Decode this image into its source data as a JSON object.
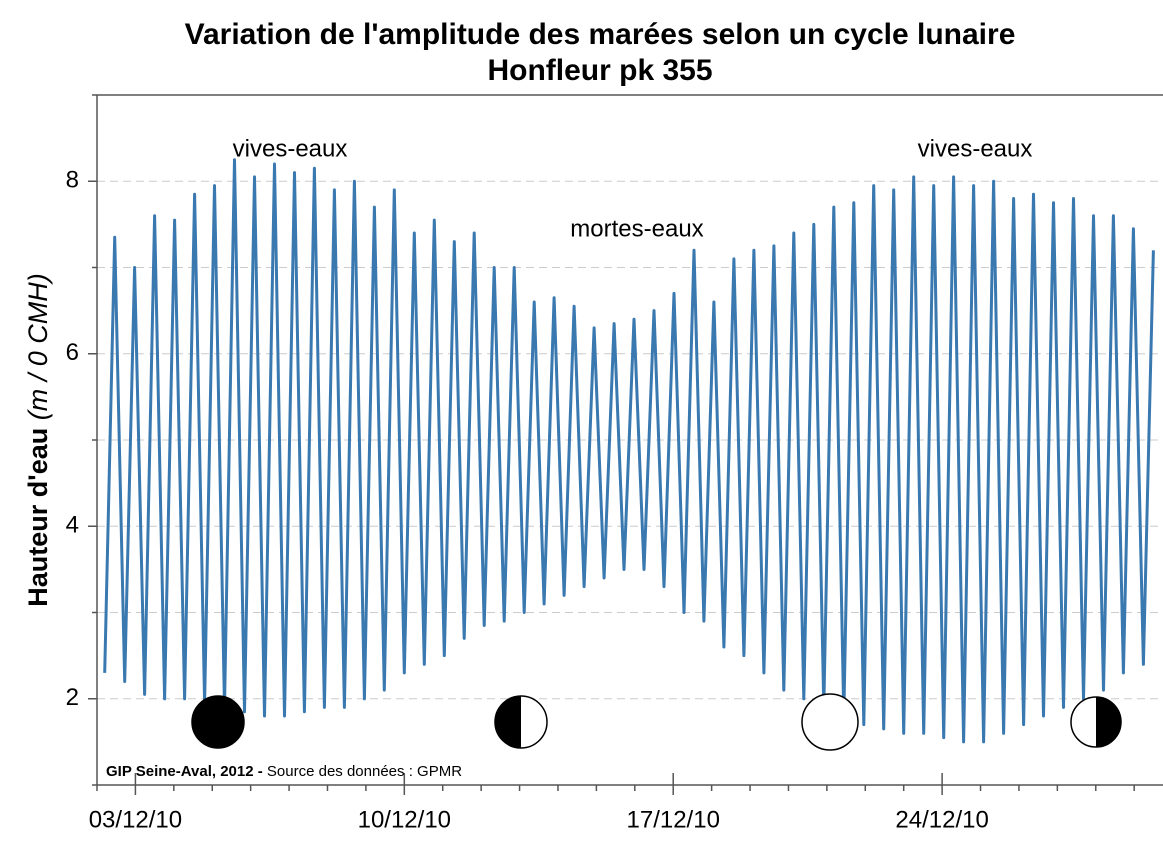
{
  "chart_data": {
    "type": "line",
    "title": "Variation de l'amplitude des marées selon un cycle lunaire",
    "subtitle": "Honfleur pk 355",
    "y_label": "Hauteur d'eau",
    "y_label_unit": "(m / 0 CMH)",
    "annotations": [
      "vives-eaux",
      "mortes-eaux",
      "vives-eaux"
    ],
    "source_bold": "GIP Seine-Aval, 2012 -",
    "source": "Source des données : GPMR",
    "xlim": [
      2,
      29.75
    ],
    "ylim": [
      1,
      9
    ],
    "xticks": [
      {
        "value": 3,
        "label": "03/12/10"
      },
      {
        "value": 10,
        "label": "10/12/10"
      },
      {
        "value": 17,
        "label": "17/12/10"
      },
      {
        "value": 24,
        "label": "24/12/10"
      }
    ],
    "minor_xticks": [
      2,
      4,
      5,
      6,
      7,
      8,
      9,
      11,
      12,
      13,
      14,
      15,
      16,
      18,
      19,
      20,
      21,
      22,
      23,
      25,
      26,
      27,
      28,
      29
    ],
    "yticks": [
      2,
      4,
      6,
      8
    ],
    "minor_yticks": [
      1,
      3,
      5,
      7,
      9
    ],
    "grid": true,
    "x": [
      2.2,
      2.46,
      2.72,
      2.98,
      3.24,
      3.5,
      3.76,
      4.02,
      4.28,
      4.54,
      4.8,
      5.06,
      5.32,
      5.58,
      5.84,
      6.1,
      6.36,
      6.62,
      6.88,
      7.14,
      7.4,
      7.66,
      7.92,
      8.18,
      8.44,
      8.7,
      8.96,
      9.22,
      9.48,
      9.74,
      10.0,
      10.26,
      10.52,
      10.78,
      11.04,
      11.3,
      11.56,
      11.82,
      12.08,
      12.34,
      12.6,
      12.86,
      13.12,
      13.38,
      13.64,
      13.9,
      14.16,
      14.42,
      14.68,
      14.94,
      15.2,
      15.46,
      15.72,
      15.98,
      16.24,
      16.5,
      16.76,
      17.02,
      17.28,
      17.54,
      17.8,
      18.06,
      18.32,
      18.58,
      18.84,
      19.1,
      19.36,
      19.62,
      19.88,
      20.14,
      20.4,
      20.66,
      20.92,
      21.18,
      21.44,
      21.7,
      21.96,
      22.22,
      22.48,
      22.74,
      23.0,
      23.26,
      23.52,
      23.78,
      24.04,
      24.3,
      24.56,
      24.82,
      25.08,
      25.34,
      25.6,
      25.86,
      26.12,
      26.38,
      26.64,
      26.9,
      27.16,
      27.42,
      27.68,
      27.94,
      28.2,
      28.46,
      28.72,
      28.98,
      29.24,
      29.5
    ],
    "series": [
      {
        "color": "#3a78b0",
        "values": [
          2.3,
          7.35,
          2.2,
          7.0,
          2.05,
          7.6,
          2.0,
          7.55,
          2.0,
          7.85,
          1.95,
          7.95,
          1.9,
          8.25,
          1.85,
          8.05,
          1.8,
          8.2,
          1.8,
          8.1,
          1.85,
          8.15,
          1.9,
          7.9,
          1.9,
          8.0,
          2.0,
          7.7,
          2.1,
          7.9,
          2.3,
          7.4,
          2.4,
          7.55,
          2.5,
          7.3,
          2.7,
          7.4,
          2.85,
          7.0,
          2.9,
          7.0,
          3.0,
          6.6,
          3.1,
          6.65,
          3.2,
          6.55,
          3.3,
          6.3,
          3.4,
          6.35,
          3.5,
          6.4,
          3.5,
          6.5,
          3.3,
          6.7,
          3.0,
          7.2,
          2.9,
          6.6,
          2.6,
          7.1,
          2.5,
          7.2,
          2.3,
          7.25,
          2.1,
          7.4,
          2.0,
          7.5,
          1.9,
          7.7,
          1.8,
          7.75,
          1.7,
          7.95,
          1.65,
          7.9,
          1.6,
          8.05,
          1.6,
          7.95,
          1.55,
          8.05,
          1.5,
          7.95,
          1.5,
          8.0,
          1.6,
          7.8,
          1.7,
          7.85,
          1.8,
          7.75,
          1.9,
          7.8,
          2.0,
          7.6,
          2.1,
          7.6,
          2.3,
          7.45,
          2.4,
          7.2
        ]
      }
    ]
  }
}
